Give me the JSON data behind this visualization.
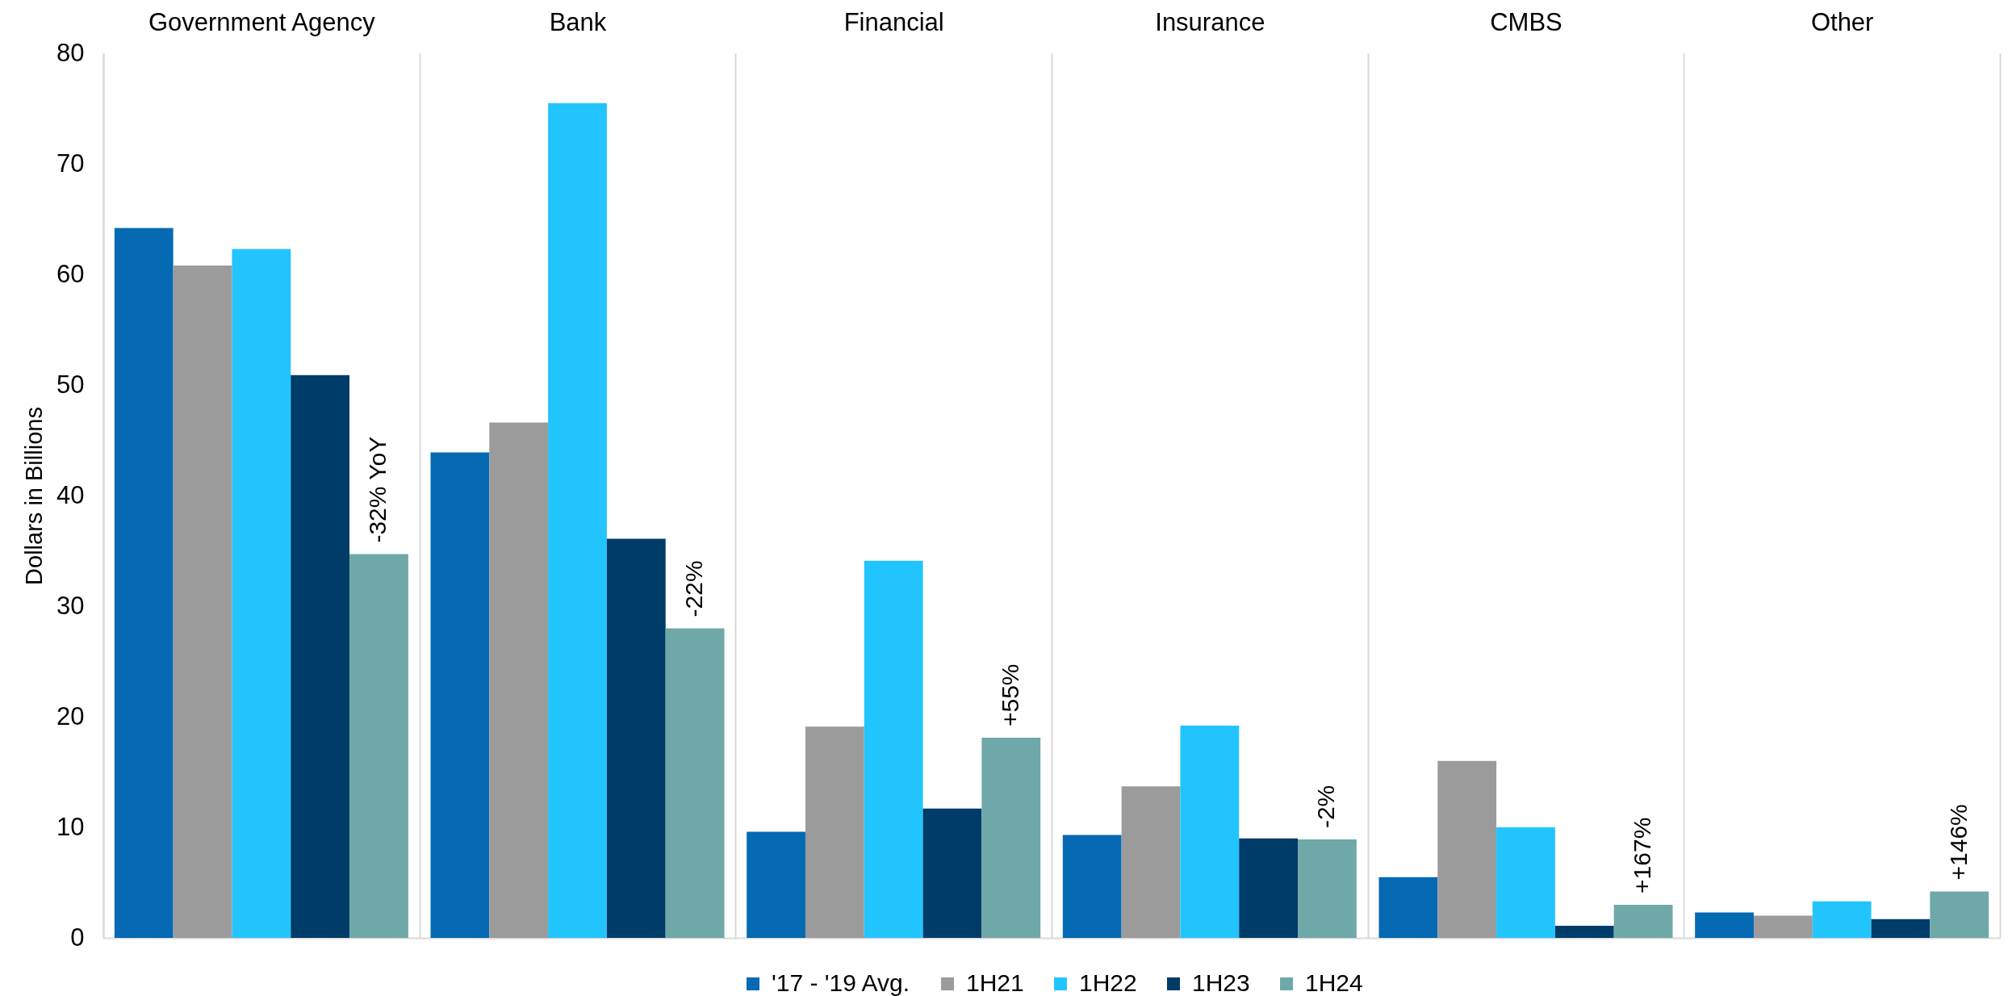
{
  "chart_data": {
    "type": "bar",
    "ylabel": "Dollars in Billions",
    "categories": [
      "Government Agency",
      "Bank",
      "Financial",
      "Insurance",
      "CMBS",
      "Other"
    ],
    "series": [
      {
        "name": "'17 - '19 Avg.",
        "color": "#0569b3",
        "values": [
          64.2,
          43.9,
          9.6,
          9.3,
          5.5,
          2.3
        ]
      },
      {
        "name": "1H21",
        "color": "#9b9b9b",
        "values": [
          60.8,
          46.6,
          19.1,
          13.7,
          16.0,
          2.0
        ]
      },
      {
        "name": "1H22",
        "color": "#22c4fe",
        "values": [
          62.3,
          75.5,
          34.1,
          19.2,
          10.0,
          3.3
        ]
      },
      {
        "name": "1H23",
        "color": "#003c69",
        "values": [
          50.9,
          36.1,
          11.7,
          9.0,
          1.1,
          1.7
        ]
      },
      {
        "name": "1H24",
        "color": "#6fa8a8",
        "values": [
          34.7,
          28.0,
          18.1,
          8.9,
          3.0,
          4.2
        ]
      }
    ],
    "ylim": [
      0,
      80
    ],
    "yticks": [
      0,
      10,
      20,
      30,
      40,
      50,
      60,
      70,
      80
    ],
    "grid": "x",
    "legend": "bottom",
    "annotations": [
      "-32% YoY",
      "-22%",
      "+55%",
      "-2%",
      "+167%",
      "+146%"
    ]
  }
}
